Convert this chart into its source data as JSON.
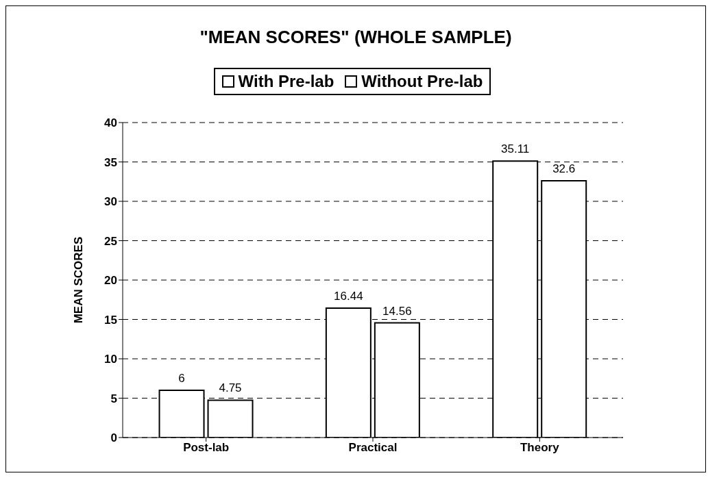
{
  "chart_data": {
    "type": "bar",
    "title": "\"MEAN SCORES\" (WHOLE SAMPLE)",
    "ylabel": "MEAN SCORES",
    "categories": [
      "Post-lab",
      "Practical",
      "Theory"
    ],
    "series": [
      {
        "name": "With Pre-lab",
        "color": "#ffffff",
        "values": [
          6,
          16.44,
          35.11
        ]
      },
      {
        "name": "Without Pre-lab",
        "color": "#ffffff",
        "values": [
          4.75,
          14.56,
          32.6
        ]
      }
    ],
    "ylim": [
      0,
      40
    ],
    "yticks": [
      0,
      5,
      10,
      15,
      20,
      25,
      30,
      35,
      40
    ],
    "grid": "y",
    "legend": "top",
    "data_labels": true
  }
}
